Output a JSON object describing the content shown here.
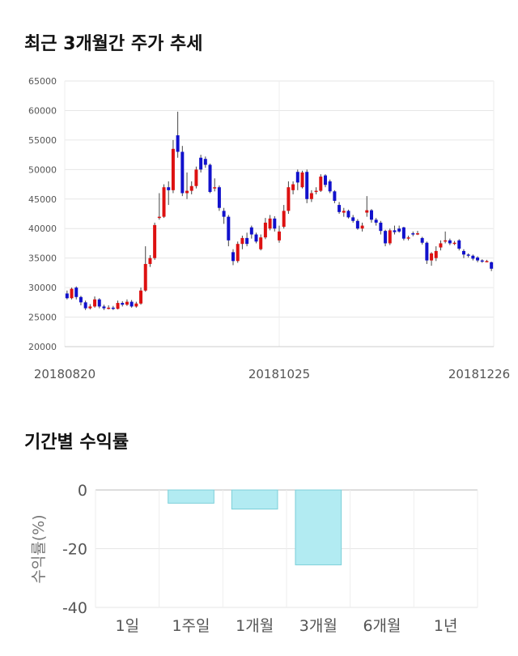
{
  "sections": {
    "price_title": "최근 3개월간 주가 추세",
    "return_title": "기간별 수익률"
  },
  "chart_data": [
    {
      "type": "candlestick",
      "title": "최근 3개월간 주가 추세",
      "ylim": [
        20000,
        65000
      ],
      "y_ticks": [
        "65000",
        "60000",
        "55000",
        "50000",
        "45000",
        "40000",
        "35000",
        "30000",
        "25000",
        "20000"
      ],
      "x_tick_labels": [
        "20180820",
        "20181025",
        "20181226"
      ],
      "grid": true,
      "colors": {
        "up": "#dd1111",
        "down": "#1111cc",
        "wick": "#444444"
      },
      "candles": [
        [
          29000,
          28200,
          29500,
          28000
        ],
        [
          28200,
          29800,
          30000,
          28000
        ],
        [
          30000,
          28400,
          30200,
          28000
        ],
        [
          28400,
          27500,
          28600,
          27000
        ],
        [
          27500,
          26500,
          27800,
          26200
        ],
        [
          26500,
          26800,
          27200,
          26300
        ],
        [
          26800,
          28000,
          28500,
          26600
        ],
        [
          28000,
          26800,
          28200,
          26500
        ],
        [
          26800,
          26500,
          27100,
          26200
        ],
        [
          26500,
          26600,
          27000,
          26300
        ],
        [
          26600,
          26400,
          26900,
          26200
        ],
        [
          26400,
          27400,
          27800,
          26300
        ],
        [
          27400,
          27100,
          27700,
          26800
        ],
        [
          27100,
          27600,
          28000,
          26900
        ],
        [
          27600,
          26800,
          27900,
          26600
        ],
        [
          26800,
          27300,
          27600,
          26600
        ],
        [
          27300,
          29500,
          30000,
          27100
        ],
        [
          29500,
          34000,
          37000,
          29300
        ],
        [
          34000,
          35000,
          35500,
          33500
        ],
        [
          35000,
          40600,
          41000,
          34700
        ],
        [
          41800,
          42000,
          46000,
          41500
        ],
        [
          42000,
          47000,
          47500,
          41800
        ],
        [
          47000,
          46500,
          48000,
          44000
        ],
        [
          46500,
          53500,
          55000,
          46000
        ],
        [
          55800,
          53000,
          59800,
          52000
        ],
        [
          53000,
          46000,
          54000,
          45500
        ],
        [
          46000,
          46400,
          49500,
          45000
        ],
        [
          46400,
          47200,
          48000,
          45800
        ],
        [
          47200,
          50000,
          50500,
          46800
        ],
        [
          52000,
          50000,
          52500,
          49500
        ],
        [
          51800,
          50800,
          52200,
          50300
        ],
        [
          50800,
          46200,
          51000,
          46000
        ],
        [
          46800,
          47000,
          48500,
          46300
        ],
        [
          47000,
          43500,
          47300,
          43000
        ],
        [
          43000,
          42000,
          43500,
          40800
        ],
        [
          42000,
          38000,
          42300,
          37000
        ],
        [
          36000,
          34500,
          36500,
          33800
        ],
        [
          34500,
          37400,
          37800,
          34200
        ],
        [
          37400,
          38400,
          38800,
          36500
        ],
        [
          38400,
          37400,
          39300,
          37000
        ],
        [
          40200,
          39000,
          40500,
          38300
        ],
        [
          39000,
          37800,
          39300,
          37500
        ],
        [
          36500,
          38500,
          39000,
          36300
        ],
        [
          38500,
          41000,
          41800,
          38200
        ],
        [
          40000,
          41700,
          42300,
          39700
        ],
        [
          41700,
          40000,
          42100,
          39500
        ],
        [
          38000,
          39500,
          40500,
          37600
        ],
        [
          40300,
          43000,
          44000,
          40000
        ],
        [
          43000,
          47000,
          48000,
          42500
        ],
        [
          46500,
          47500,
          48000,
          45800
        ],
        [
          49600,
          47800,
          50000,
          46500
        ],
        [
          47000,
          49500,
          49800,
          46800
        ],
        [
          49600,
          45000,
          50000,
          44300
        ],
        [
          45000,
          46000,
          46500,
          44500
        ],
        [
          46200,
          46400,
          47000,
          45800
        ],
        [
          46400,
          48800,
          49200,
          46200
        ],
        [
          49000,
          47400,
          49200,
          47000
        ],
        [
          48000,
          46300,
          48300,
          46000
        ],
        [
          46300,
          44700,
          46500,
          44300
        ],
        [
          44000,
          42800,
          44500,
          42500
        ],
        [
          42700,
          43000,
          43500,
          42000
        ],
        [
          43000,
          41900,
          43200,
          41700
        ],
        [
          41900,
          41300,
          42300,
          41000
        ],
        [
          41300,
          40000,
          41600,
          39800
        ],
        [
          40000,
          40500,
          41000,
          39500
        ],
        [
          42700,
          43100,
          45500,
          42000
        ],
        [
          43100,
          41500,
          43300,
          41000
        ],
        [
          41500,
          41000,
          41800,
          40500
        ],
        [
          41000,
          39600,
          41300,
          39000
        ],
        [
          39600,
          37500,
          39800,
          37000
        ],
        [
          37500,
          39700,
          40000,
          37200
        ],
        [
          39700,
          39400,
          40500,
          39000
        ],
        [
          40000,
          39500,
          40500,
          39300
        ],
        [
          40200,
          38300,
          40300,
          38000
        ],
        [
          38300,
          38500,
          38800,
          38000
        ],
        [
          39200,
          39100,
          39500,
          38700
        ],
        [
          39100,
          39200,
          39600,
          38900
        ],
        [
          38400,
          37600,
          38600,
          37300
        ],
        [
          37600,
          34600,
          37800,
          34000
        ],
        [
          34600,
          35800,
          36000,
          33700
        ],
        [
          35000,
          36200,
          37000,
          34500
        ],
        [
          36800,
          37500,
          38000,
          36300
        ],
        [
          37900,
          38000,
          39500,
          37500
        ],
        [
          38000,
          37500,
          38300,
          37200
        ],
        [
          37500,
          37600,
          37900,
          37200
        ],
        [
          38000,
          36600,
          38200,
          36300
        ],
        [
          36200,
          35600,
          36500,
          35000
        ],
        [
          35600,
          35400,
          35800,
          35100
        ],
        [
          35400,
          34900,
          35600,
          34600
        ],
        [
          35100,
          34600,
          35300,
          34300
        ],
        [
          34600,
          34400,
          34800,
          34200
        ],
        [
          34400,
          34500,
          34700,
          34300
        ],
        [
          34300,
          33200,
          34400,
          32800
        ]
      ]
    },
    {
      "type": "bar",
      "title": "기간별 수익률",
      "ylabel": "수익률(%)",
      "ylim": [
        -40,
        0
      ],
      "y_ticks": [
        "0",
        "-20",
        "-40"
      ],
      "categories": [
        "1일",
        "1주일",
        "1개월",
        "3개월",
        "6개월",
        "1년"
      ],
      "values": [
        0,
        -4.5,
        -6.5,
        -25.5,
        0,
        0
      ],
      "colors": {
        "bar_fill": "#b2ebf2",
        "bar_stroke": "#7ccfd9"
      }
    }
  ]
}
